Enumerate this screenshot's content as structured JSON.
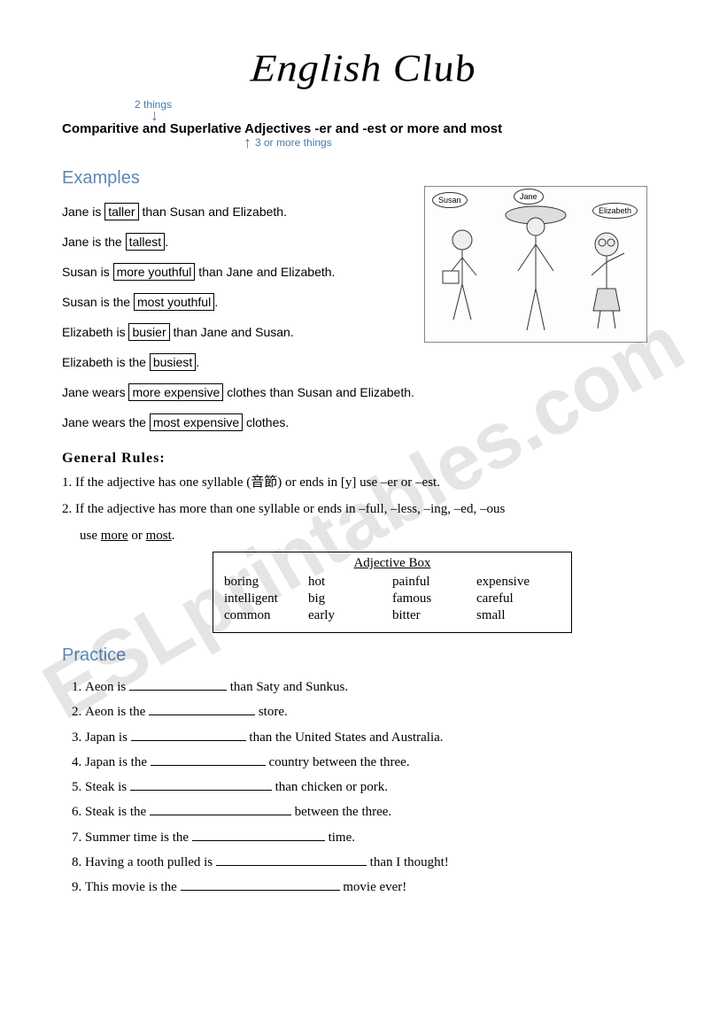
{
  "watermark": "ESLprintables.com",
  "title": "English Club",
  "annotation_top": "2 things",
  "annotation_bottom": "3 or more things",
  "subtitle": "Comparitive and Superlative Adjectives -er and -est or more and most",
  "examples_heading": "Examples",
  "illustration": {
    "name1": "Susan",
    "name2": "Jane",
    "name3": "Elizabeth"
  },
  "examples": [
    {
      "pre": "Jane is ",
      "box": "taller",
      "post": " than Susan and Elizabeth."
    },
    {
      "pre": "Jane is the ",
      "box": "tallest",
      "post": "."
    },
    {
      "pre": "Susan is ",
      "box": "more youthful",
      "post": " than Jane and Elizabeth."
    },
    {
      "pre": "Susan is the ",
      "box": "most youthful",
      "post": "."
    },
    {
      "pre": "Elizabeth is ",
      "box": "busier",
      "post": " than Jane and Susan."
    },
    {
      "pre": "Elizabeth is the ",
      "box": "busiest",
      "post": "."
    },
    {
      "pre": "Jane wears ",
      "box": "more expensive",
      "post": " clothes than Susan and Elizabeth."
    },
    {
      "pre": "Jane wears the ",
      "box": "most expensive",
      "post": " clothes."
    }
  ],
  "rules_heading": "General Rules:",
  "rules": [
    "1. If the adjective has one syllable (音節) or ends in [y] use –er or –est.",
    "2. If the adjective has more than one syllable or ends in –full, –less, –ing, –ed, –ous"
  ],
  "rules_cont_pre": "use ",
  "rules_cont_u1": "more",
  "rules_cont_mid": " or ",
  "rules_cont_u2": "most",
  "rules_cont_post": ".",
  "adjbox": {
    "title": "Adjective Box",
    "rows": [
      [
        "boring",
        "hot",
        "painful",
        "expensive"
      ],
      [
        "intelligent",
        "big",
        "famous",
        "careful"
      ],
      [
        "common",
        "early",
        "bitter",
        "small"
      ]
    ]
  },
  "practice_heading": "Practice",
  "practice": [
    {
      "pre": "Aeon is ",
      "post": " than Saty and Sunkus.",
      "bw": 110
    },
    {
      "pre": "Aeon is the ",
      "post": " store.",
      "bw": 120
    },
    {
      "pre": "Japan is ",
      "post": " than the United States and Australia.",
      "bw": 130
    },
    {
      "pre": "Japan is the ",
      "post": " country between the three.",
      "bw": 130
    },
    {
      "pre": "Steak is ",
      "post": " than chicken or pork.",
      "bw": 160
    },
    {
      "pre": "Steak is the ",
      "post": " between the three.",
      "bw": 160
    },
    {
      "pre": "Summer time is the ",
      "post": " time.",
      "bw": 150
    },
    {
      "pre": "Having a tooth pulled is ",
      "post": " than I thought!",
      "bw": 170
    },
    {
      "pre": "This movie is the ",
      "post": " movie ever!",
      "bw": 180
    }
  ]
}
